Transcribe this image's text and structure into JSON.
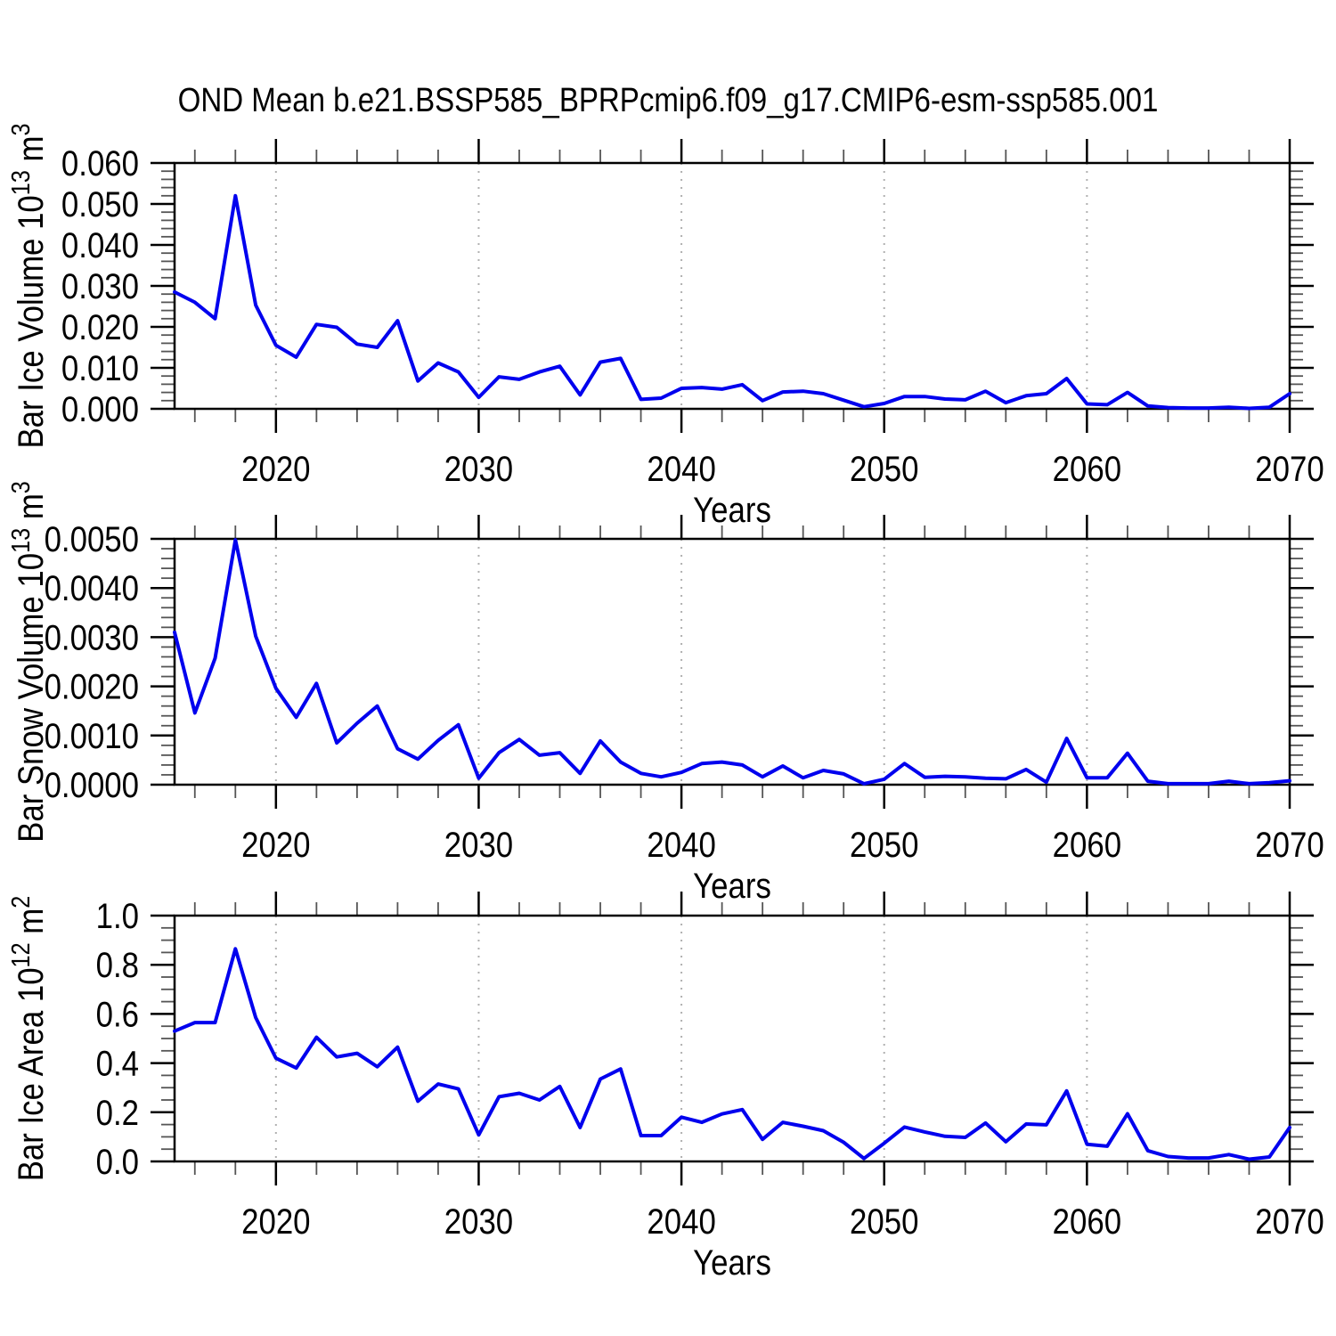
{
  "title": "OND Mean b.e21.BSSP585_BPRPcmip6.f09_g17.CMIP6-esm-ssp585.001",
  "colors": {
    "line": "#0000ee",
    "grid": "#b0b0b0",
    "axis": "#000000",
    "minor_tick": "#555555"
  },
  "years": [
    2015,
    2016,
    2017,
    2018,
    2019,
    2020,
    2021,
    2022,
    2023,
    2024,
    2025,
    2026,
    2027,
    2028,
    2029,
    2030,
    2031,
    2032,
    2033,
    2034,
    2035,
    2036,
    2037,
    2038,
    2039,
    2040,
    2041,
    2042,
    2043,
    2044,
    2045,
    2046,
    2047,
    2048,
    2049,
    2050,
    2051,
    2052,
    2053,
    2054,
    2055,
    2056,
    2057,
    2058,
    2059,
    2060,
    2061,
    2062,
    2063,
    2064,
    2065,
    2066,
    2067,
    2068,
    2069,
    2070
  ],
  "chart_data": [
    {
      "type": "line",
      "name": "bar-ice-volume",
      "title": "",
      "xlabel": "Years",
      "ylabel": "Bar Ice Volume 10^13 m^3",
      "ylabel_parts": {
        "base": "Bar Ice Volume 10",
        "exp": "13",
        "unit": "m",
        "unit_exp": "3"
      },
      "xlim": [
        2015,
        2070
      ],
      "ylim": [
        0,
        0.06
      ],
      "ytick_step": 0.01,
      "yminor_step": 0.002,
      "ytick_labels": [
        "0.000",
        "0.010",
        "0.020",
        "0.030",
        "0.040",
        "0.050",
        "0.060"
      ],
      "xticks": [
        2020,
        2030,
        2040,
        2050,
        2060,
        2070
      ],
      "xtick_labels": [
        "2020",
        "2030",
        "2040",
        "2050",
        "2060",
        "2070"
      ],
      "xminor_step": 2,
      "grid_x": [
        2020,
        2030,
        2040,
        2050,
        2060
      ],
      "grid_on": true,
      "legend": "none",
      "values": [
        0.0285,
        0.026,
        0.022,
        0.052,
        0.0253,
        0.0155,
        0.0126,
        0.0206,
        0.0199,
        0.0158,
        0.015,
        0.0215,
        0.0068,
        0.0112,
        0.009,
        0.0028,
        0.0078,
        0.0072,
        0.009,
        0.0104,
        0.0034,
        0.0114,
        0.0123,
        0.0023,
        0.0026,
        0.005,
        0.0052,
        0.0048,
        0.0059,
        0.002,
        0.0041,
        0.0043,
        0.0037,
        0.0021,
        0.0005,
        0.0013,
        0.003,
        0.003,
        0.0024,
        0.0022,
        0.0043,
        0.0015,
        0.0032,
        0.0037,
        0.0074,
        0.0012,
        0.001,
        0.004,
        0.0007,
        0.0003,
        0.0002,
        0.0002,
        0.0004,
        0.0001,
        0.0004,
        0.0037
      ]
    },
    {
      "type": "line",
      "name": "bar-snow-volume",
      "title": "",
      "xlabel": "Years",
      "ylabel": "Bar Snow Volume 10^13 m^3",
      "ylabel_parts": {
        "base": "Bar Snow Volume 10",
        "exp": "13",
        "unit": "m",
        "unit_exp": "3"
      },
      "xlim": [
        2015,
        2070
      ],
      "ylim": [
        0,
        0.005
      ],
      "ytick_step": 0.001,
      "yminor_step": 0.0002,
      "ytick_labels": [
        "0.0000",
        "0.0010",
        "0.0020",
        "0.0030",
        "0.0040",
        "0.0050"
      ],
      "xticks": [
        2020,
        2030,
        2040,
        2050,
        2060,
        2070
      ],
      "xtick_labels": [
        "2020",
        "2030",
        "2040",
        "2050",
        "2060",
        "2070"
      ],
      "xminor_step": 2,
      "grid_x": [
        2020,
        2030,
        2040,
        2050,
        2060
      ],
      "grid_on": true,
      "legend": "none",
      "values": [
        0.0031,
        0.00146,
        0.00257,
        0.00498,
        0.00302,
        0.00196,
        0.00137,
        0.00206,
        0.00085,
        0.00125,
        0.0016,
        0.00073,
        0.00052,
        0.0009,
        0.00122,
        0.00013,
        0.00065,
        0.00092,
        0.0006,
        0.00065,
        0.00023,
        0.00089,
        0.00046,
        0.00023,
        0.00016,
        0.00025,
        0.00043,
        0.00046,
        0.0004,
        0.00016,
        0.00038,
        0.00014,
        0.00029,
        0.00022,
        2e-05,
        0.00011,
        0.00043,
        0.00015,
        0.00017,
        0.00016,
        0.00013,
        0.00012,
        0.00031,
        5e-05,
        0.00094,
        0.00014,
        0.00014,
        0.00064,
        7e-05,
        2e-05,
        2e-05,
        2e-05,
        7e-05,
        2e-05,
        4e-05,
        8e-05
      ]
    },
    {
      "type": "line",
      "name": "bar-ice-area",
      "title": "",
      "xlabel": "Years",
      "ylabel": "Bar Ice Area 10^12 m^2",
      "ylabel_parts": {
        "base": "Bar Ice Area 10",
        "exp": "12",
        "unit": "m",
        "unit_exp": "2"
      },
      "xlim": [
        2015,
        2070
      ],
      "ylim": [
        0,
        1.0
      ],
      "ytick_step": 0.2,
      "yminor_step": 0.05,
      "ytick_labels": [
        "0.0",
        "0.2",
        "0.4",
        "0.6",
        "0.8",
        "1.0"
      ],
      "xticks": [
        2020,
        2030,
        2040,
        2050,
        2060,
        2070
      ],
      "xtick_labels": [
        "2020",
        "2030",
        "2040",
        "2050",
        "2060",
        "2070"
      ],
      "xminor_step": 2,
      "grid_x": [
        2020,
        2030,
        2040,
        2050,
        2060
      ],
      "grid_on": true,
      "legend": "none",
      "values": [
        0.53,
        0.565,
        0.565,
        0.865,
        0.585,
        0.42,
        0.38,
        0.505,
        0.425,
        0.44,
        0.385,
        0.465,
        0.245,
        0.315,
        0.295,
        0.108,
        0.263,
        0.277,
        0.25,
        0.305,
        0.138,
        0.335,
        0.376,
        0.105,
        0.105,
        0.18,
        0.159,
        0.193,
        0.211,
        0.09,
        0.159,
        0.143,
        0.125,
        0.078,
        0.012,
        0.074,
        0.14,
        0.12,
        0.102,
        0.098,
        0.156,
        0.08,
        0.152,
        0.149,
        0.287,
        0.07,
        0.062,
        0.194,
        0.044,
        0.02,
        0.014,
        0.014,
        0.028,
        0.009,
        0.018,
        0.138
      ]
    }
  ]
}
